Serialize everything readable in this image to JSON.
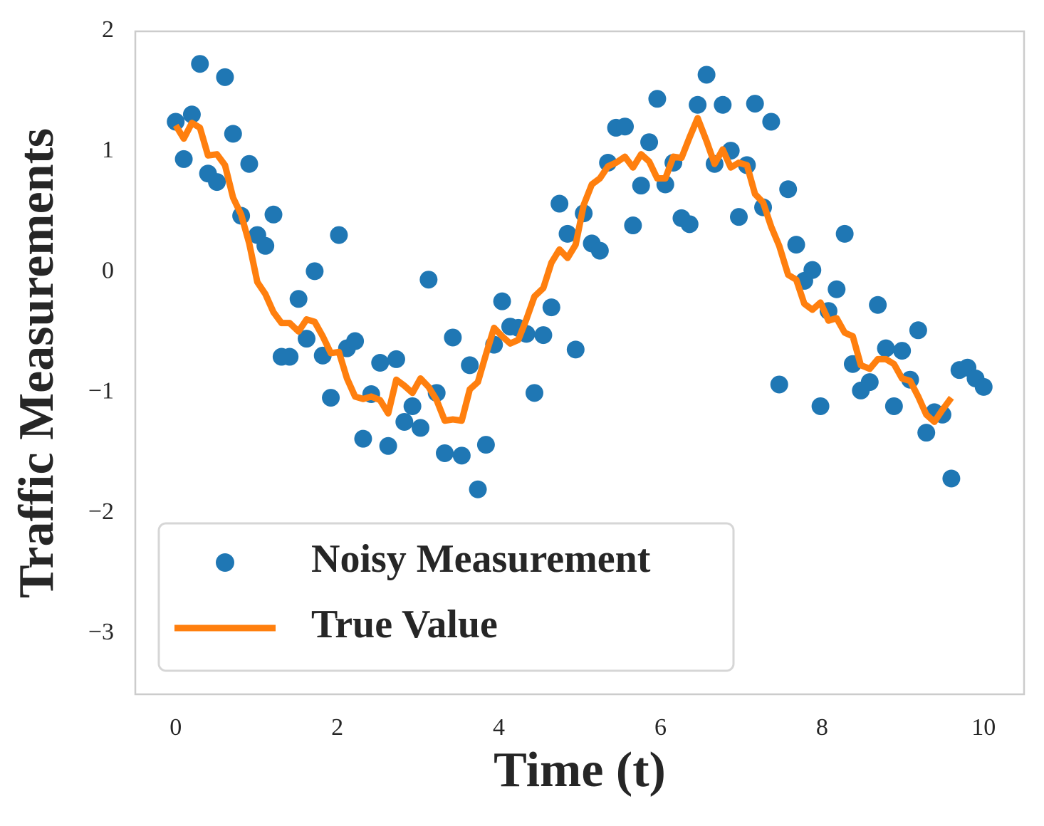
{
  "chart_data": {
    "type": "scatter",
    "x_label": "Time (t)",
    "y_label": "Traffic Measurements",
    "xlim": [
      -0.5,
      10.5
    ],
    "ylim": [
      -3.5,
      2
    ],
    "xticks": [
      0,
      2,
      4,
      6,
      8,
      10
    ],
    "yticks": [
      {
        "value": -3,
        "label": "−3"
      },
      {
        "value": -2,
        "label": "−2"
      },
      {
        "value": -1,
        "label": "−1"
      },
      0,
      1,
      2
    ],
    "grid": false,
    "legend": "lower left",
    "series": [
      {
        "name": "Noisy Measurement",
        "kind": "scatter",
        "color": "#1f77b4",
        "x": [
          0,
          0.1,
          0.2,
          0.3,
          0.4,
          0.51,
          0.61,
          0.71,
          0.81,
          0.91,
          1.01,
          1.11,
          1.21,
          1.31,
          1.41,
          1.52,
          1.62,
          1.72,
          1.82,
          1.92,
          2.02,
          2.12,
          2.22,
          2.32,
          2.42,
          2.53,
          2.63,
          2.73,
          2.83,
          2.93,
          3.03,
          3.13,
          3.23,
          3.33,
          3.43,
          3.54,
          3.64,
          3.74,
          3.84,
          3.94,
          4.04,
          4.14,
          4.24,
          4.34,
          4.44,
          4.55,
          4.65,
          4.75,
          4.85,
          4.95,
          5.05,
          5.15,
          5.25,
          5.35,
          5.45,
          5.56,
          5.66,
          5.76,
          5.86,
          5.96,
          6.06,
          6.16,
          6.26,
          6.36,
          6.46,
          6.57,
          6.67,
          6.77,
          6.87,
          6.97,
          7.07,
          7.17,
          7.27,
          7.37,
          7.47,
          7.58,
          7.68,
          7.78,
          7.88,
          7.98,
          8.08,
          8.18,
          8.28,
          8.38,
          8.48,
          8.59,
          8.69,
          8.79,
          8.89,
          8.99,
          9.09,
          9.19,
          9.29,
          9.39,
          9.49,
          9.6,
          9.7,
          9.8,
          9.9,
          10
        ],
        "values": [
          1.25,
          0.94,
          1.31,
          1.73,
          0.82,
          0.75,
          1.62,
          1.15,
          0.47,
          0.9,
          0.31,
          0.22,
          0.48,
          -0.7,
          -0.7,
          -0.22,
          -0.55,
          0.01,
          -0.69,
          -1.04,
          0.31,
          -0.63,
          -0.57,
          -1.38,
          -1.01,
          -0.75,
          -1.44,
          -0.72,
          -1.24,
          -1.11,
          -1.29,
          -0.06,
          -1.0,
          -1.5,
          -0.54,
          -1.52,
          -0.77,
          -1.8,
          -1.43,
          -0.6,
          -0.24,
          -0.45,
          -0.46,
          -0.51,
          -1.0,
          -0.52,
          -0.29,
          0.57,
          0.32,
          -0.64,
          0.49,
          0.24,
          0.18,
          0.91,
          1.2,
          1.21,
          0.39,
          0.72,
          1.08,
          1.44,
          0.73,
          0.91,
          0.45,
          0.4,
          1.39,
          1.64,
          0.9,
          1.39,
          1.01,
          0.46,
          0.89,
          1.4,
          0.54,
          1.25,
          -0.93,
          0.69,
          0.23,
          -0.07,
          0.02,
          -1.11,
          -0.32,
          -0.14,
          0.32,
          -0.76,
          -0.98,
          -0.91,
          -0.27,
          -0.63,
          -1.11,
          -0.65,
          -0.89,
          -0.48,
          -1.33,
          -1.16,
          -1.18,
          -1.71,
          -0.81,
          -0.79,
          -0.88,
          -0.95
        ]
      },
      {
        "name": "True Value",
        "kind": "line",
        "color": "#ff7f0e",
        "x": [
          0,
          0.1,
          0.2,
          0.3,
          0.4,
          0.51,
          0.61,
          0.71,
          0.81,
          0.91,
          1.01,
          1.11,
          1.21,
          1.31,
          1.41,
          1.52,
          1.62,
          1.72,
          1.82,
          1.92,
          2.02,
          2.12,
          2.22,
          2.32,
          2.42,
          2.53,
          2.63,
          2.73,
          2.83,
          2.93,
          3.03,
          3.13,
          3.23,
          3.33,
          3.43,
          3.54,
          3.64,
          3.74,
          3.84,
          3.94,
          4.04,
          4.14,
          4.24,
          4.34,
          4.44,
          4.55,
          4.65,
          4.75,
          4.85,
          4.95,
          5.05,
          5.15,
          5.25,
          5.35,
          5.45,
          5.56,
          5.66,
          5.76,
          5.86,
          5.96,
          6.06,
          6.16,
          6.26,
          6.36,
          6.46,
          6.57,
          6.67,
          6.77,
          6.87,
          6.97,
          7.07,
          7.17,
          7.27,
          7.37,
          7.47,
          7.58,
          7.68,
          7.78,
          7.88,
          7.98,
          8.08,
          8.18,
          8.28,
          8.38,
          8.48,
          8.59,
          8.69,
          8.79,
          8.89,
          8.99,
          9.09,
          9.19,
          9.29,
          9.39,
          9.49,
          9.6
        ],
        "values": [
          1.22,
          1.11,
          1.24,
          1.2,
          0.97,
          0.98,
          0.89,
          0.62,
          0.48,
          0.24,
          -0.08,
          -0.18,
          -0.33,
          -0.42,
          -0.42,
          -0.49,
          -0.39,
          -0.41,
          -0.53,
          -0.67,
          -0.66,
          -0.88,
          -1.03,
          -1.05,
          -1.03,
          -1.06,
          -1.17,
          -0.89,
          -0.94,
          -1.0,
          -0.88,
          -0.95,
          -1.06,
          -1.23,
          -1.22,
          -1.23,
          -0.97,
          -0.91,
          -0.68,
          -0.46,
          -0.53,
          -0.59,
          -0.56,
          -0.39,
          -0.2,
          -0.13,
          0.08,
          0.19,
          0.12,
          0.23,
          0.56,
          0.73,
          0.78,
          0.88,
          0.91,
          0.96,
          0.87,
          0.98,
          0.92,
          0.78,
          0.78,
          0.96,
          0.95,
          1.12,
          1.28,
          1.09,
          0.9,
          1.02,
          0.87,
          0.91,
          0.89,
          0.65,
          0.58,
          0.38,
          0.22,
          -0.02,
          -0.06,
          -0.26,
          -0.31,
          -0.25,
          -0.4,
          -0.38,
          -0.5,
          -0.53,
          -0.77,
          -0.8,
          -0.72,
          -0.72,
          -0.76,
          -0.88,
          -0.9,
          -1.03,
          -1.18,
          -1.24,
          -1.14,
          -1.04
        ]
      }
    ]
  }
}
